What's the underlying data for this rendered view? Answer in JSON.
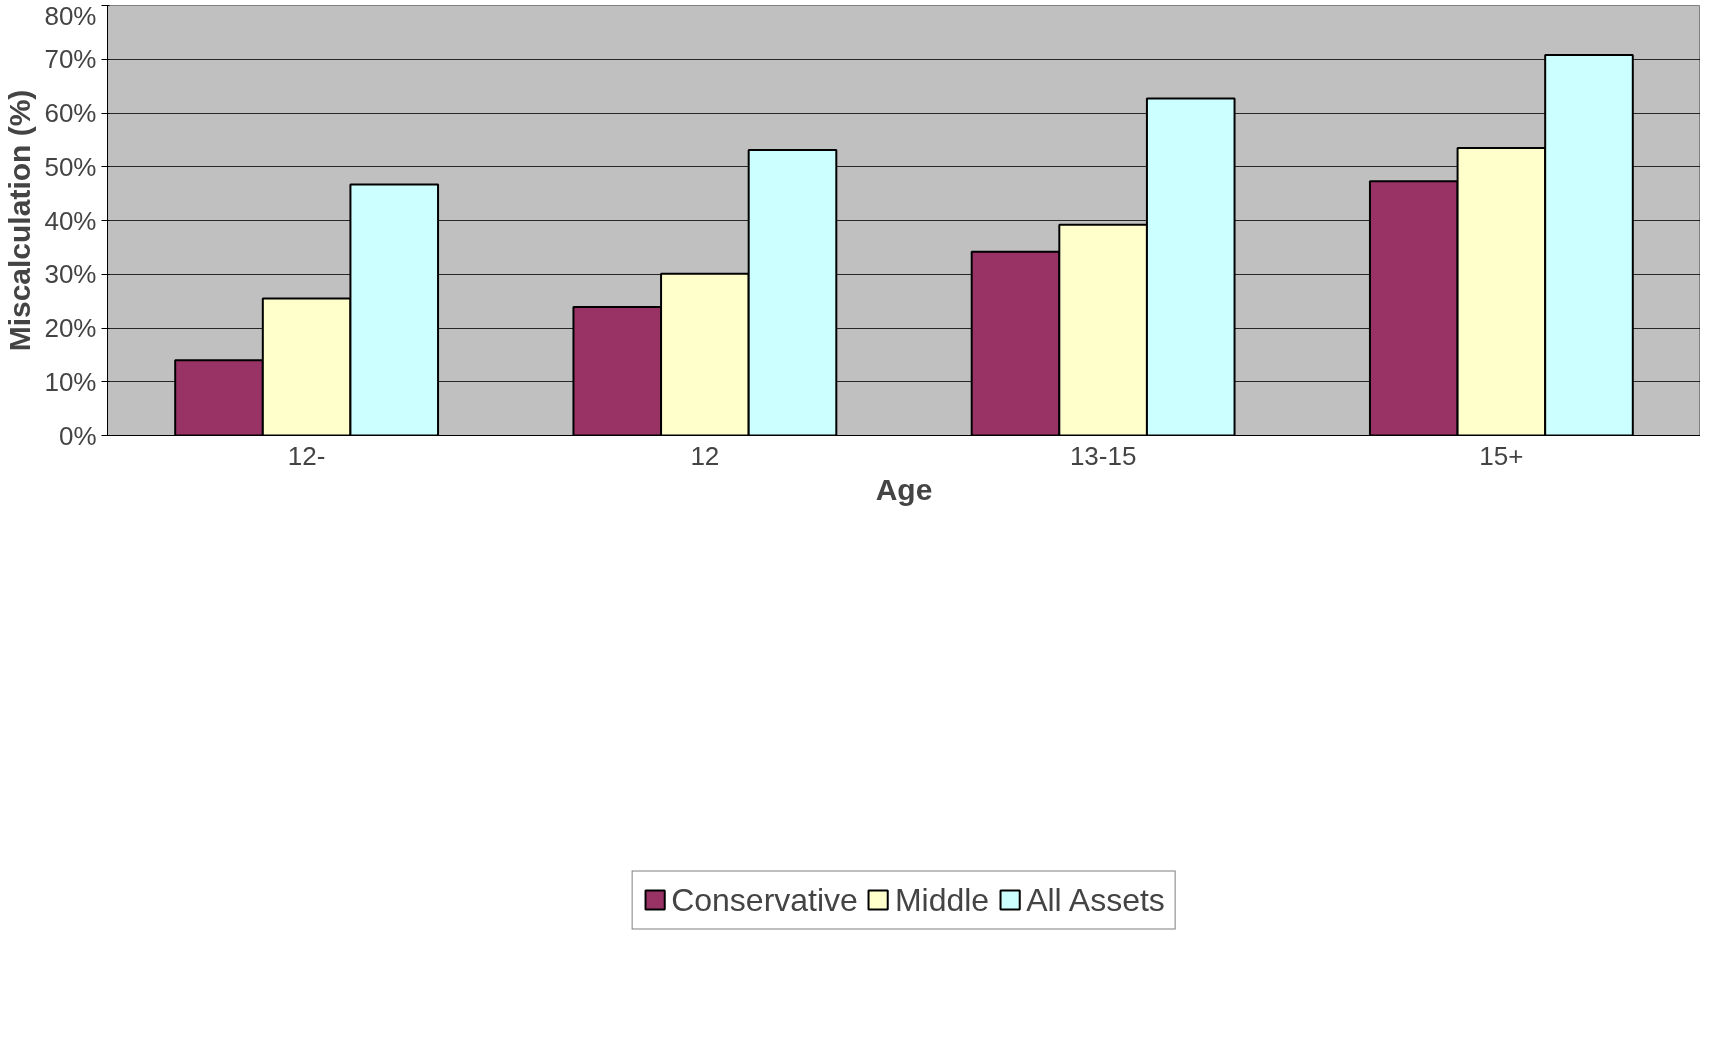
{
  "chart_data": {
    "type": "bar",
    "xlabel": "Age",
    "ylabel": "Miscalculation (%)",
    "categories": [
      "12-",
      "12",
      "13-15",
      "15+"
    ],
    "series": [
      {
        "name": "Conservative",
        "color": "#993366",
        "values": [
          14.0,
          23.9,
          34.2,
          47.3
        ]
      },
      {
        "name": "Middle",
        "color": "#ffffcc",
        "values": [
          25.5,
          30.1,
          39.2,
          53.5
        ]
      },
      {
        "name": "All Assets",
        "color": "#ccffff",
        "values": [
          46.7,
          53.1,
          62.7,
          70.8
        ]
      }
    ],
    "ylim": [
      0,
      80
    ],
    "yticks": [
      {
        "value": 0,
        "label": "0%"
      },
      {
        "value": 10,
        "label": "10%"
      },
      {
        "value": 20,
        "label": "20%"
      },
      {
        "value": 30,
        "label": "30%"
      },
      {
        "value": 40,
        "label": "40%"
      },
      {
        "value": 50,
        "label": "50%"
      },
      {
        "value": 60,
        "label": "60%"
      },
      {
        "value": 70,
        "label": "70%"
      },
      {
        "value": 80,
        "label": "80%"
      }
    ],
    "grid": "y",
    "legend": "bottom"
  }
}
